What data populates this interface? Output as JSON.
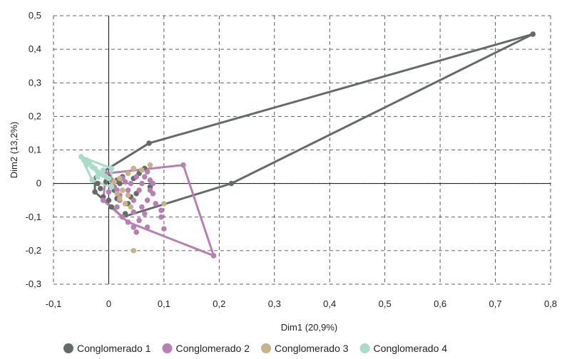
{
  "chart_data": {
    "type": "scatter",
    "xlabel": "Dim1 (20,9%)",
    "ylabel": "Dim2 (13,2%)",
    "xlim": [
      -0.1,
      0.8
    ],
    "ylim": [
      -0.3,
      0.5
    ],
    "x_ticks": [
      "-0,1",
      "0",
      "0,1",
      "0,2",
      "0,3",
      "0,4",
      "0,5",
      "0,6",
      "0,7",
      "0,8"
    ],
    "y_ticks": [
      "-0,3",
      "-0,2",
      "-0,1",
      "0",
      "0,1",
      "0,2",
      "0,3",
      "0,4",
      "0,5"
    ],
    "grid": true,
    "grid_style": "dashed",
    "legend_position": "bottom",
    "series": [
      {
        "name": "Conglomerado 1",
        "color": "#656b68",
        "hull": [
          [
            -0.025,
            0.02
          ],
          [
            0.073,
            0.12
          ],
          [
            0.768,
            0.445
          ],
          [
            0.222,
            0.0
          ],
          [
            0.025,
            -0.1
          ],
          [
            -0.025,
            -0.025
          ]
        ],
        "points": [
          [
            0.768,
            0.445
          ],
          [
            0.073,
            0.12
          ],
          [
            0.222,
            0.0
          ],
          [
            0.025,
            -0.1
          ],
          [
            -0.025,
            -0.025
          ],
          [
            -0.02,
            0.0
          ],
          [
            -0.015,
            -0.015
          ],
          [
            0.0,
            0.02
          ],
          [
            0.015,
            0.01
          ],
          [
            0.065,
            0.045
          ],
          [
            0.055,
            0.03
          ],
          [
            0.075,
            -0.01
          ],
          [
            0.04,
            -0.04
          ],
          [
            0.005,
            -0.07
          ],
          [
            -0.01,
            -0.04
          ],
          [
            0.03,
            -0.09
          ],
          [
            0.02,
            0.0
          ],
          [
            0.045,
            0.015
          ],
          [
            0.01,
            -0.02
          ],
          [
            0.0,
            -0.05
          ],
          [
            0.035,
            -0.06
          ],
          [
            0.015,
            -0.045
          ],
          [
            -0.005,
            0.005
          ],
          [
            0.05,
            -0.03
          ],
          [
            0.025,
            0.02
          ]
        ]
      },
      {
        "name": "Conglomerado 2",
        "color": "#b77fb3",
        "hull": [
          [
            -0.005,
            0.03
          ],
          [
            0.135,
            0.055
          ],
          [
            0.19,
            -0.215
          ],
          [
            0.035,
            -0.115
          ],
          [
            -0.01,
            -0.05
          ]
        ],
        "points": [
          [
            0.135,
            0.055
          ],
          [
            0.19,
            -0.215
          ],
          [
            0.035,
            -0.115
          ],
          [
            -0.01,
            -0.05
          ],
          [
            -0.005,
            0.03
          ],
          [
            0.07,
            0.035
          ],
          [
            0.065,
            0.02
          ],
          [
            0.075,
            0.01
          ],
          [
            0.08,
            0.0
          ],
          [
            0.055,
            -0.02
          ],
          [
            0.07,
            -0.05
          ],
          [
            0.06,
            -0.07
          ],
          [
            0.065,
            -0.09
          ],
          [
            0.07,
            -0.13
          ],
          [
            0.095,
            -0.1
          ],
          [
            0.1,
            -0.135
          ],
          [
            0.045,
            -0.13
          ],
          [
            0.05,
            -0.145
          ],
          [
            0.03,
            -0.06
          ],
          [
            0.02,
            -0.035
          ],
          [
            0.035,
            -0.02
          ],
          [
            0.045,
            -0.05
          ],
          [
            0.01,
            -0.01
          ],
          [
            0.0,
            -0.025
          ],
          [
            0.015,
            -0.07
          ],
          [
            0.025,
            0.015
          ],
          [
            0.04,
            0.0
          ],
          [
            0.05,
            0.02
          ],
          [
            0.08,
            -0.03
          ],
          [
            0.085,
            -0.06
          ],
          [
            0.095,
            -0.08
          ],
          [
            0.045,
            -0.085
          ],
          [
            0.02,
            -0.05
          ],
          [
            0.03,
            0.005
          ],
          [
            0.06,
            0.0
          ],
          [
            0.075,
            -0.02
          ],
          [
            0.005,
            0.01
          ],
          [
            0.015,
            -0.02
          ],
          [
            0.025,
            -0.1
          ],
          [
            0.055,
            -0.11
          ]
        ]
      },
      {
        "name": "Conglomerado 3",
        "color": "#c8b289",
        "hull": [],
        "points": [
          [
            0.075,
            0.055
          ],
          [
            0.045,
            0.045
          ],
          [
            0.035,
            0.03
          ],
          [
            0.02,
            0.015
          ],
          [
            0.01,
            0.005
          ],
          [
            0.025,
            -0.02
          ],
          [
            0.035,
            -0.035
          ],
          [
            0.015,
            -0.03
          ],
          [
            0.03,
            -0.06
          ],
          [
            0.005,
            -0.01
          ],
          [
            0.04,
            -0.07
          ],
          [
            0.02,
            -0.045
          ],
          [
            0.045,
            -0.2
          ],
          [
            0.1,
            -0.06
          ],
          [
            0.06,
            0.04
          ]
        ]
      },
      {
        "name": "Conglomerado 4",
        "color": "#a8dcc8",
        "hull": [
          [
            -0.05,
            0.08
          ],
          [
            0.005,
            0.045
          ],
          [
            0.005,
            -0.01
          ],
          [
            -0.03,
            0.01
          ]
        ],
        "points": [
          [
            -0.05,
            0.08
          ],
          [
            -0.04,
            0.07
          ],
          [
            -0.035,
            0.06
          ],
          [
            -0.03,
            0.05
          ],
          [
            -0.025,
            0.045
          ],
          [
            -0.02,
            0.035
          ],
          [
            -0.015,
            0.03
          ],
          [
            -0.01,
            0.025
          ],
          [
            -0.005,
            0.02
          ],
          [
            0.0,
            0.015
          ],
          [
            -0.03,
            0.01
          ],
          [
            -0.02,
            0.02
          ],
          [
            -0.01,
            0.04
          ],
          [
            0.005,
            0.045
          ],
          [
            0.005,
            -0.01
          ],
          [
            -0.04,
            0.055
          ],
          [
            -0.045,
            0.07
          ]
        ]
      }
    ]
  }
}
